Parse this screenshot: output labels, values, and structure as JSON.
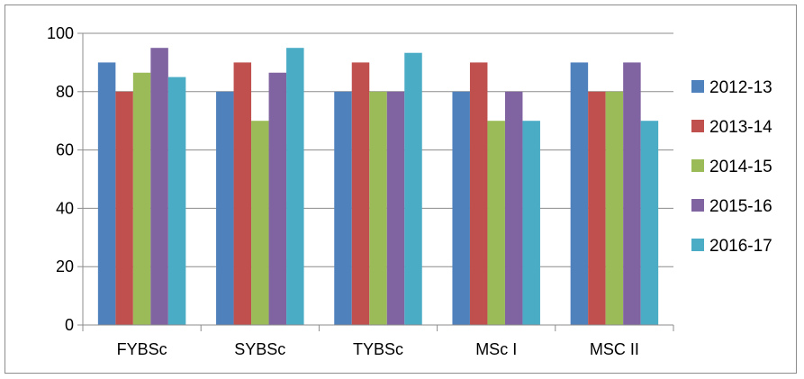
{
  "chart_data": {
    "type": "bar",
    "title": "",
    "xlabel": "",
    "ylabel": "",
    "categories": [
      "FYBSc",
      "SYBSc",
      "TYBSc",
      "MSc I",
      "MSC II"
    ],
    "series": [
      {
        "name": "2012-13",
        "color": "#4f81bd",
        "values": [
          90,
          80,
          80,
          80,
          90
        ]
      },
      {
        "name": "2013-14",
        "color": "#c0504d",
        "values": [
          80,
          90,
          90,
          90,
          80
        ]
      },
      {
        "name": "2014-15",
        "color": "#9bbb59",
        "values": [
          86.5,
          70,
          80,
          70,
          80
        ]
      },
      {
        "name": "2015-16",
        "color": "#8064a2",
        "values": [
          95,
          86.5,
          80,
          80,
          90
        ]
      },
      {
        "name": "2016-17",
        "color": "#4bacc6",
        "values": [
          85,
          95,
          93.3,
          70,
          70
        ]
      }
    ],
    "ylim": [
      0,
      100
    ],
    "yticks": [
      0,
      20,
      40,
      60,
      80,
      100
    ],
    "grid": true,
    "legend_position": "right"
  }
}
